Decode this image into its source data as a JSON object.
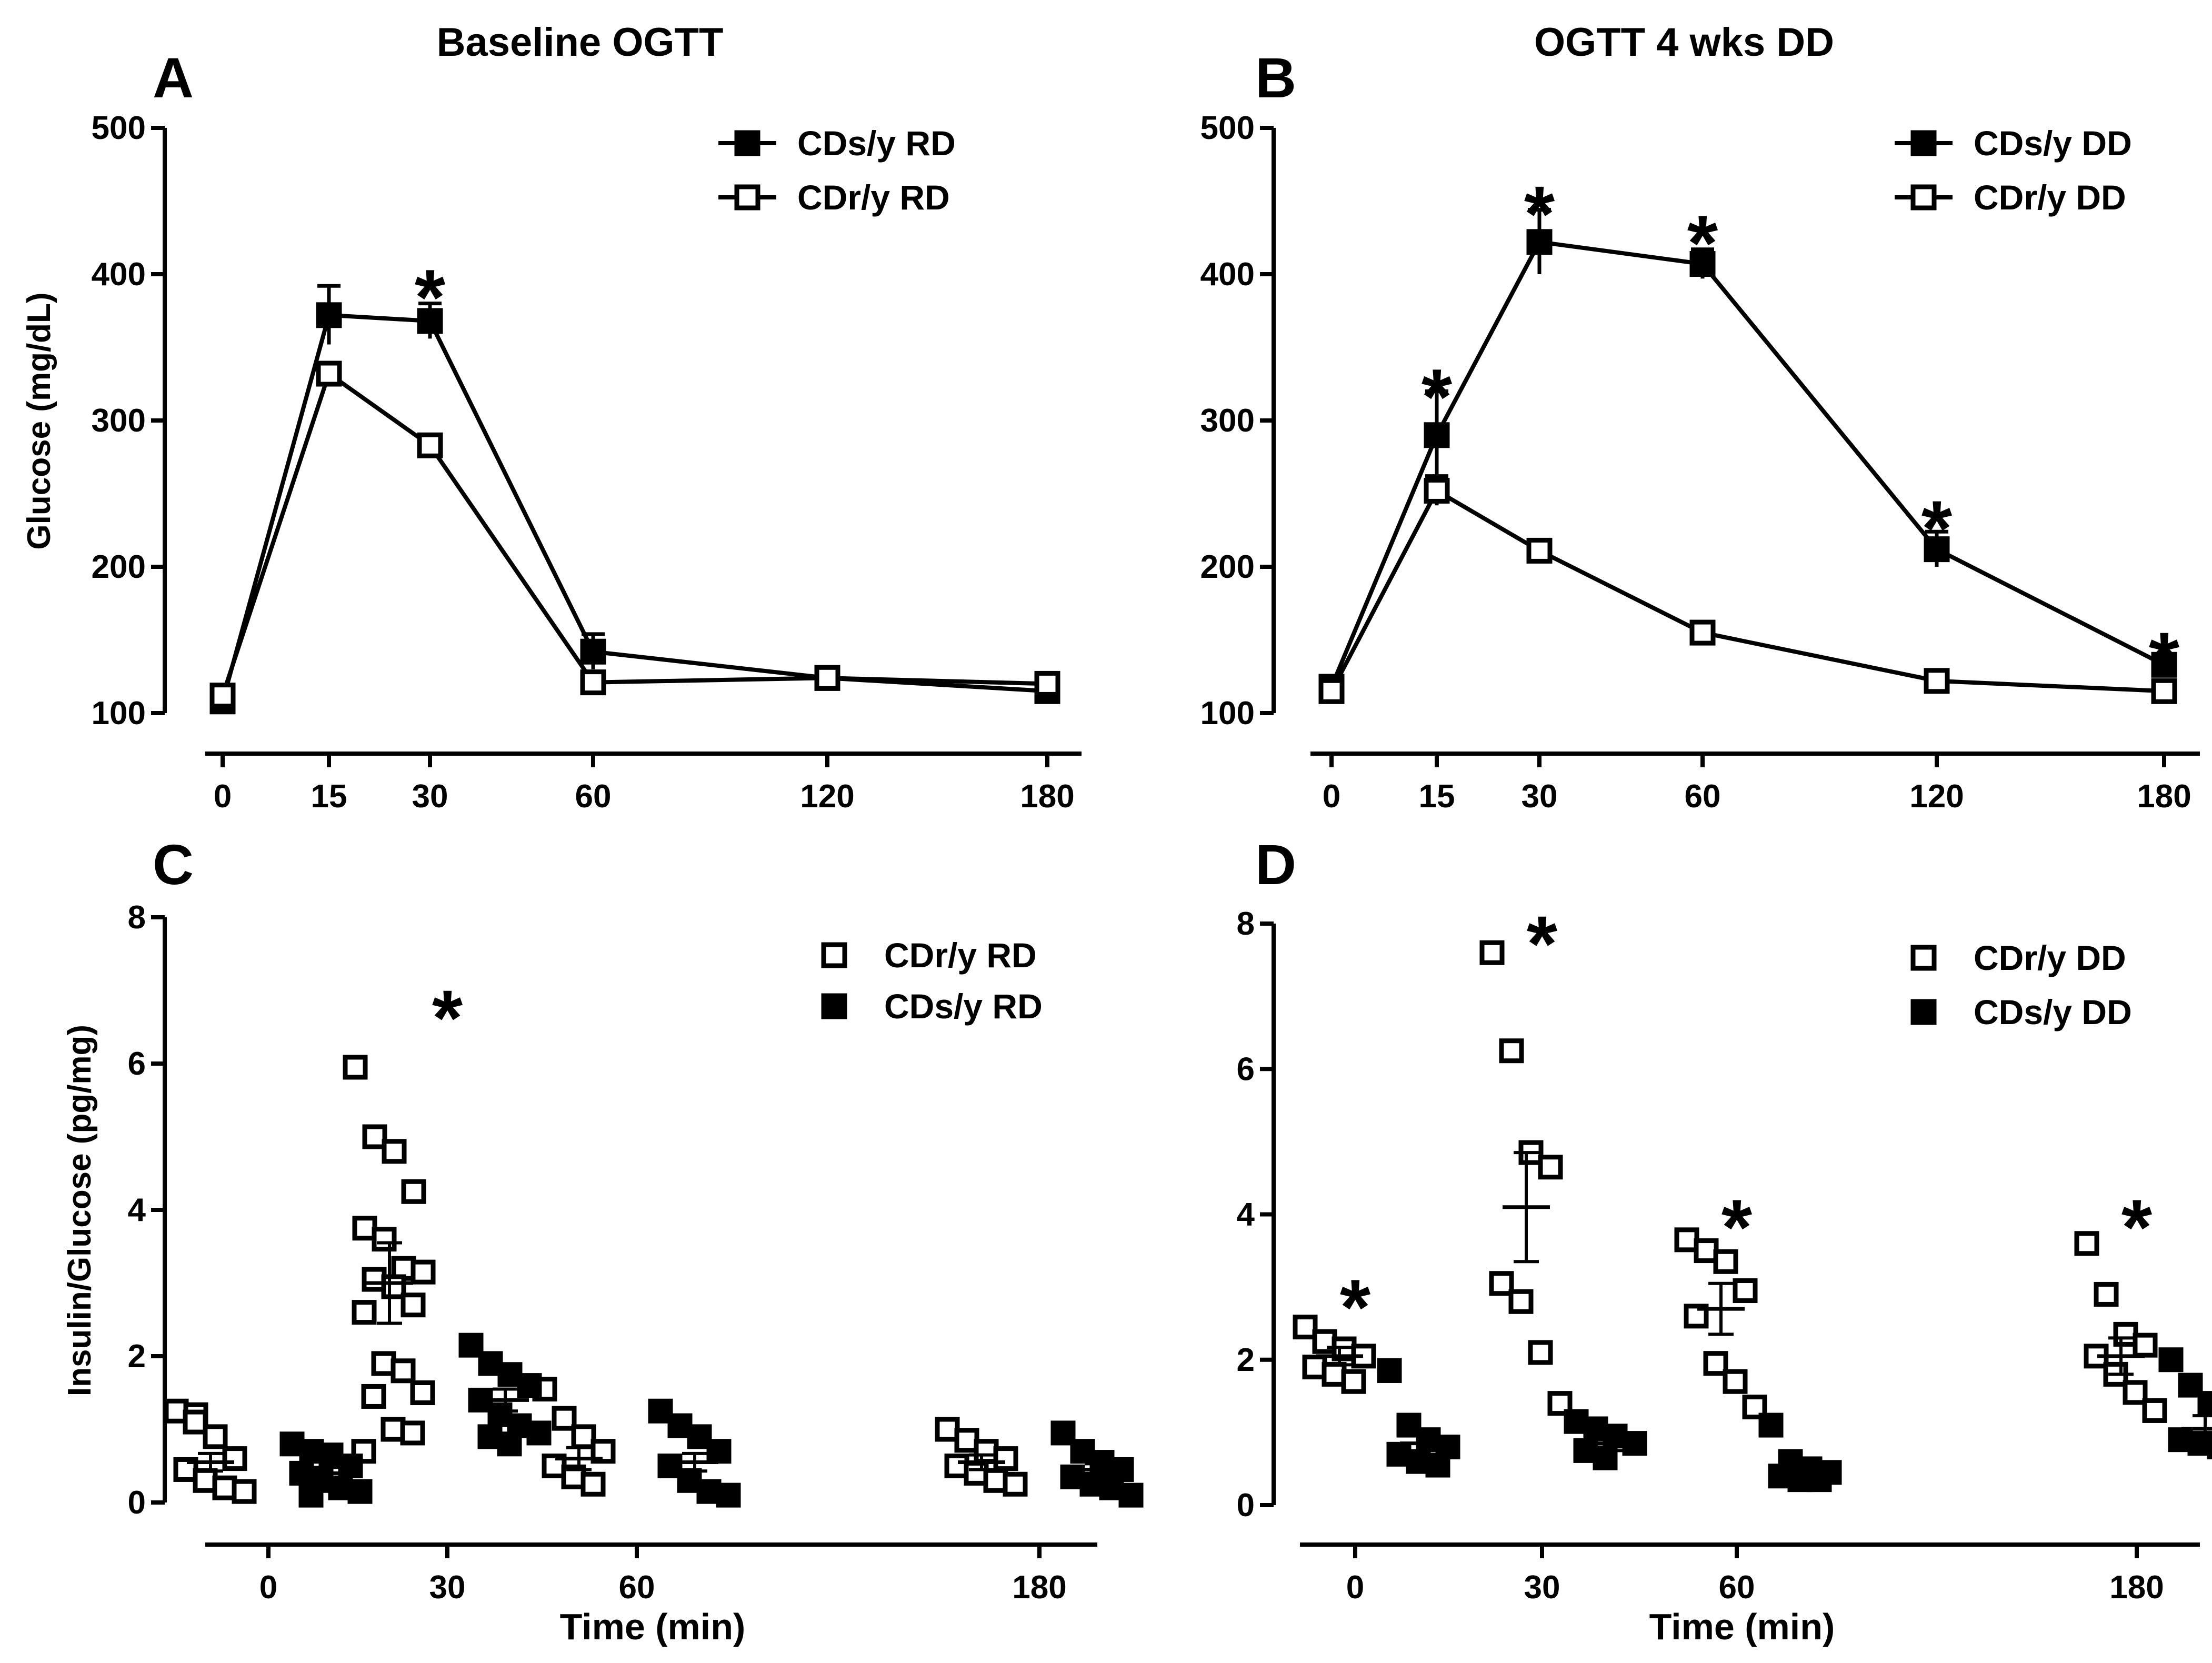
{
  "figure": {
    "panels": {
      "A": {
        "letter": "A",
        "title": "Baseline OGTT"
      },
      "B": {
        "letter": "B",
        "title": "OGTT 4 wks DD"
      },
      "C": {
        "letter": "C",
        "title": ""
      },
      "D": {
        "letter": "D",
        "title": ""
      }
    }
  },
  "colors": {
    "ink": "#000000",
    "open_fill": "#ffffff",
    "filled": "#000000"
  },
  "chart_data": [
    {
      "panel": "A",
      "type": "line",
      "title": "Baseline OGTT",
      "xlabel": "",
      "ylabel": "Glucose (mg/dL)",
      "x": [
        0,
        15,
        30,
        60,
        120,
        180
      ],
      "x_tick_labels": [
        "0",
        "15",
        "30",
        "60",
        "120",
        "180"
      ],
      "yticks": [
        100,
        200,
        300,
        400,
        500
      ],
      "ylim": [
        100,
        500
      ],
      "legend_position": "top-right",
      "series": [
        {
          "name": "CDs/y RD",
          "marker": "filled-square",
          "values": [
            108,
            372,
            368,
            142,
            124,
            115
          ],
          "errors": [
            4,
            20,
            12,
            12,
            5,
            5
          ]
        },
        {
          "name": "CDr/y RD",
          "marker": "open-square",
          "values": [
            112,
            332,
            283,
            121,
            124,
            120
          ],
          "errors": [
            3,
            6,
            6,
            5,
            4,
            4
          ]
        }
      ],
      "significance": [
        {
          "x": 30,
          "value": 398,
          "label": "*"
        }
      ]
    },
    {
      "panel": "B",
      "type": "line",
      "title": "OGTT 4 wks DD",
      "xlabel": "",
      "ylabel": "",
      "x": [
        0,
        15,
        30,
        60,
        120,
        180
      ],
      "x_tick_labels": [
        "0",
        "15",
        "30",
        "60",
        "120",
        "180"
      ],
      "yticks": [
        100,
        200,
        300,
        400,
        500
      ],
      "ylim": [
        100,
        500
      ],
      "legend_position": "top-right",
      "series": [
        {
          "name": "CDs/y DD",
          "marker": "filled-square",
          "values": [
            118,
            290,
            422,
            407,
            212,
            133
          ],
          "errors": [
            4,
            30,
            22,
            10,
            12,
            5
          ]
        },
        {
          "name": "CDr/y DD",
          "marker": "open-square",
          "values": [
            115,
            252,
            211,
            155,
            122,
            115
          ],
          "errors": [
            3,
            10,
            5,
            4,
            4,
            4
          ]
        }
      ],
      "significance": [
        {
          "x": 15,
          "value": 330,
          "label": "*"
        },
        {
          "x": 30,
          "value": 455,
          "label": "*"
        },
        {
          "x": 60,
          "value": 435,
          "label": "*"
        },
        {
          "x": 120,
          "value": 240,
          "label": "*"
        },
        {
          "x": 180,
          "value": 150,
          "label": "*"
        }
      ]
    },
    {
      "panel": "C",
      "type": "scatter",
      "title": "",
      "xlabel": "Time (min)",
      "ylabel": "Insulin/Glucose (pg/mg)",
      "categories": [
        "0",
        "30",
        "60",
        "180"
      ],
      "yticks": [
        0,
        2,
        4,
        6,
        8
      ],
      "ylim": [
        0,
        8
      ],
      "legend_position": "top-right",
      "series": [
        {
          "name": "CDr/y RD",
          "marker": "open-square",
          "points": [
            [
              0,
              1.25
            ],
            [
              0,
              1.2
            ],
            [
              0,
              0.9
            ],
            [
              0,
              0.6
            ],
            [
              0,
              0.45
            ],
            [
              0,
              0.3
            ],
            [
              0,
              0.2
            ],
            [
              0,
              0.15
            ],
            [
              0,
              1.1
            ],
            [
              30,
              5.95
            ],
            [
              30,
              5.0
            ],
            [
              30,
              4.8
            ],
            [
              30,
              4.25
            ],
            [
              30,
              3.75
            ],
            [
              30,
              3.6
            ],
            [
              30,
              3.2
            ],
            [
              30,
              3.15
            ],
            [
              30,
              3.05
            ],
            [
              30,
              2.95
            ],
            [
              30,
              2.7
            ],
            [
              30,
              2.6
            ],
            [
              30,
              1.9
            ],
            [
              30,
              1.8
            ],
            [
              30,
              1.5
            ],
            [
              30,
              1.45
            ],
            [
              30,
              1.0
            ],
            [
              30,
              0.95
            ],
            [
              30,
              0.7
            ],
            [
              60,
              1.55
            ],
            [
              60,
              1.15
            ],
            [
              60,
              0.9
            ],
            [
              60,
              0.7
            ],
            [
              60,
              0.5
            ],
            [
              60,
              0.35
            ],
            [
              60,
              0.25
            ],
            [
              180,
              1.0
            ],
            [
              180,
              0.85
            ],
            [
              180,
              0.7
            ],
            [
              180,
              0.6
            ],
            [
              180,
              0.5
            ],
            [
              180,
              0.4
            ],
            [
              180,
              0.3
            ],
            [
              180,
              0.25
            ]
          ],
          "mean": [
            0.55,
            3.0,
            0.6,
            0.55
          ],
          "sem": [
            0.12,
            0.55,
            0.15,
            0.1
          ]
        },
        {
          "name": "CDs/y RD",
          "marker": "filled-square",
          "points": [
            [
              0,
              0.8
            ],
            [
              0,
              0.7
            ],
            [
              0,
              0.65
            ],
            [
              0,
              0.5
            ],
            [
              0,
              0.4
            ],
            [
              0,
              0.3
            ],
            [
              0,
              0.2
            ],
            [
              0,
              0.15
            ],
            [
              0,
              0.1
            ],
            [
              30,
              2.15
            ],
            [
              30,
              1.9
            ],
            [
              30,
              1.75
            ],
            [
              30,
              1.6
            ],
            [
              30,
              1.4
            ],
            [
              30,
              1.2
            ],
            [
              30,
              1.05
            ],
            [
              30,
              0.95
            ],
            [
              30,
              0.9
            ],
            [
              30,
              0.8
            ],
            [
              60,
              1.25
            ],
            [
              60,
              1.05
            ],
            [
              60,
              0.9
            ],
            [
              60,
              0.7
            ],
            [
              60,
              0.5
            ],
            [
              60,
              0.3
            ],
            [
              60,
              0.15
            ],
            [
              60,
              0.1
            ],
            [
              180,
              0.95
            ],
            [
              180,
              0.7
            ],
            [
              180,
              0.55
            ],
            [
              180,
              0.45
            ],
            [
              180,
              0.35
            ],
            [
              180,
              0.25
            ],
            [
              180,
              0.2
            ],
            [
              180,
              0.1
            ]
          ],
          "mean": [
            0.4,
            1.4,
            0.55,
            0.45
          ],
          "sem": [
            0.08,
            0.15,
            0.12,
            0.08
          ]
        }
      ],
      "significance": [
        {
          "x": "30",
          "value": 6.9,
          "label": "*"
        }
      ]
    },
    {
      "panel": "D",
      "type": "scatter",
      "title": "",
      "xlabel": "Time (min)",
      "ylabel": "",
      "categories": [
        "0",
        "30",
        "60",
        "180"
      ],
      "yticks": [
        0,
        2,
        4,
        6,
        8
      ],
      "ylim": [
        0,
        8
      ],
      "legend_position": "top-right",
      "series": [
        {
          "name": "CDr/y DD",
          "marker": "open-square",
          "points": [
            [
              0,
              2.45
            ],
            [
              0,
              2.25
            ],
            [
              0,
              2.15
            ],
            [
              0,
              2.05
            ],
            [
              0,
              1.9
            ],
            [
              0,
              1.8
            ],
            [
              0,
              1.7
            ],
            [
              30,
              7.6
            ],
            [
              30,
              6.25
            ],
            [
              30,
              4.85
            ],
            [
              30,
              4.65
            ],
            [
              30,
              3.05
            ],
            [
              30,
              2.8
            ],
            [
              30,
              2.1
            ],
            [
              30,
              1.4
            ],
            [
              60,
              3.65
            ],
            [
              60,
              3.5
            ],
            [
              60,
              3.35
            ],
            [
              60,
              2.95
            ],
            [
              60,
              2.6
            ],
            [
              60,
              1.95
            ],
            [
              60,
              1.7
            ],
            [
              60,
              1.35
            ],
            [
              180,
              3.6
            ],
            [
              180,
              2.9
            ],
            [
              180,
              2.35
            ],
            [
              180,
              2.2
            ],
            [
              180,
              2.05
            ],
            [
              180,
              1.8
            ],
            [
              180,
              1.55
            ],
            [
              180,
              1.3
            ]
          ],
          "mean": [
            2.05,
            4.1,
            2.7,
            2.05
          ],
          "sem": [
            0.12,
            0.75,
            0.35,
            0.25
          ]
        },
        {
          "name": "CDs/y DD",
          "marker": "filled-square",
          "points": [
            [
              0,
              1.85
            ],
            [
              0,
              1.1
            ],
            [
              0,
              0.9
            ],
            [
              0,
              0.8
            ],
            [
              0,
              0.7
            ],
            [
              0,
              0.6
            ],
            [
              0,
              0.55
            ],
            [
              30,
              1.15
            ],
            [
              30,
              1.05
            ],
            [
              30,
              0.95
            ],
            [
              30,
              0.85
            ],
            [
              30,
              0.75
            ],
            [
              30,
              0.65
            ],
            [
              60,
              1.1
            ],
            [
              60,
              0.6
            ],
            [
              60,
              0.5
            ],
            [
              60,
              0.45
            ],
            [
              60,
              0.4
            ],
            [
              60,
              0.35
            ],
            [
              60,
              0.35
            ],
            [
              180,
              2.0
            ],
            [
              180,
              1.65
            ],
            [
              180,
              1.4
            ],
            [
              180,
              1.0
            ],
            [
              180,
              0.9
            ],
            [
              180,
              0.85
            ],
            [
              180,
              0.8
            ]
          ],
          "mean": [
            0.85,
            0.85,
            0.5,
            1.05
          ],
          "sem": [
            0.15,
            0.1,
            0.1,
            0.18
          ]
        }
      ],
      "significance": [
        {
          "x": "0",
          "value": 3.0,
          "label": "*"
        },
        {
          "x": "30",
          "value": 8.0,
          "label": "*"
        },
        {
          "x": "60",
          "value": 4.1,
          "label": "*"
        },
        {
          "x": "180",
          "value": 4.1,
          "label": "*"
        }
      ]
    }
  ]
}
